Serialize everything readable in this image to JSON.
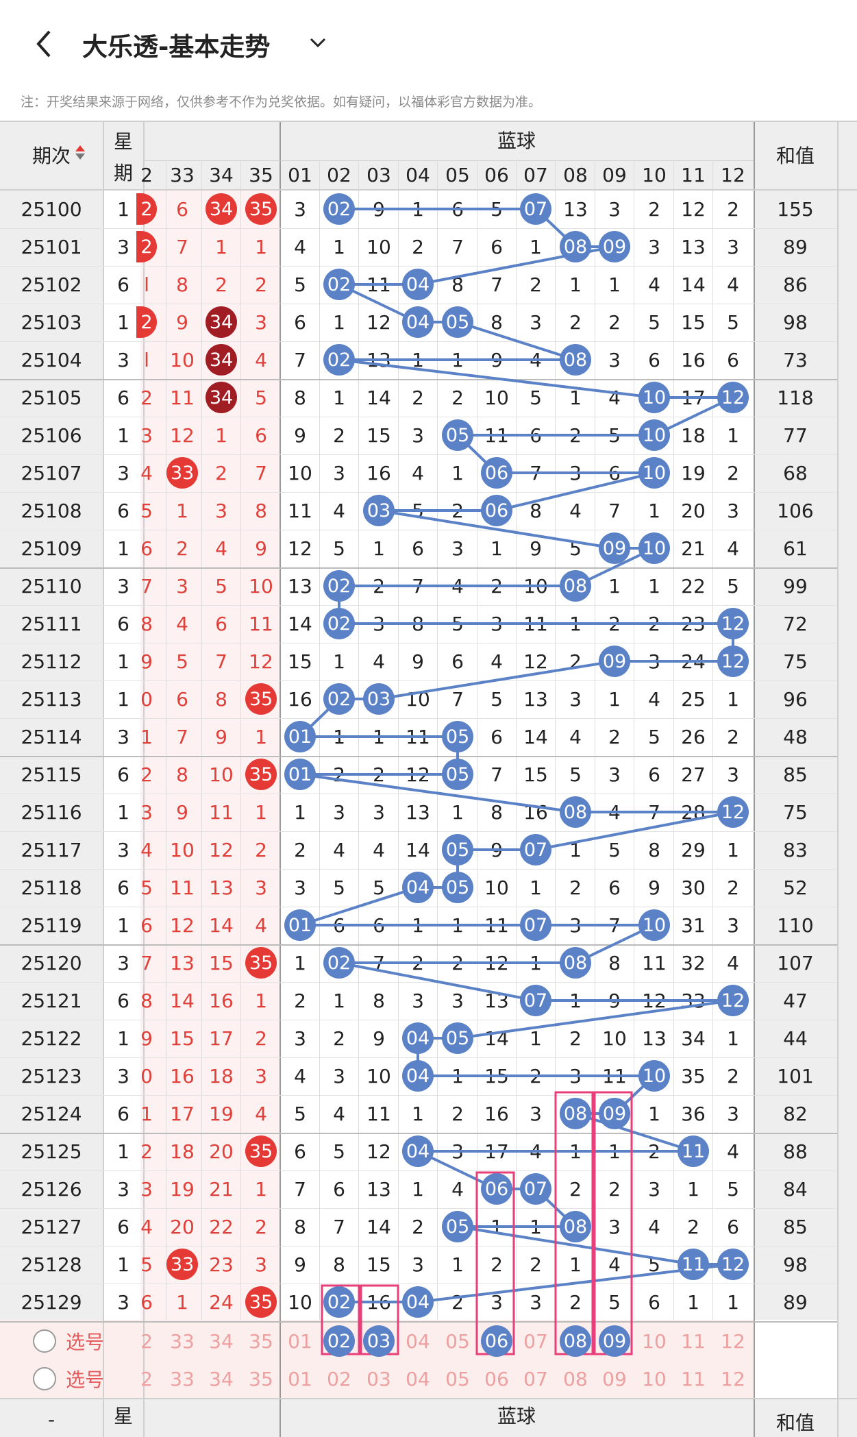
{
  "header": {
    "title": "大乐透-基本走势"
  },
  "note": "注：开奖结果来源于网络，仅供参考不作为兑奖依据。如有疑问，以福体彩官方数据为准。",
  "table_header": {
    "period": "期次",
    "weekday_top": "星",
    "weekday_bottom": "期",
    "blue_title": "蓝球",
    "sum": "和值"
  },
  "front_cols": [
    "2",
    "33",
    "34",
    "35"
  ],
  "blue_cols": [
    "01",
    "02",
    "03",
    "04",
    "05",
    "06",
    "07",
    "08",
    "09",
    "10",
    "11",
    "12"
  ],
  "rows": [
    {
      "period": "25100",
      "wk": "1",
      "front": [
        "2",
        "6",
        "34",
        "35"
      ],
      "blue": [
        "3",
        "02",
        "9",
        "1",
        "6",
        "5",
        "07",
        "13",
        "3",
        "2",
        "12",
        "2"
      ],
      "sum": "155"
    },
    {
      "period": "25101",
      "wk": "3",
      "front": [
        "2",
        "7",
        "1",
        "1"
      ],
      "blue": [
        "4",
        "1",
        "10",
        "2",
        "7",
        "6",
        "1",
        "08",
        "09",
        "3",
        "13",
        "3"
      ],
      "sum": "89"
    },
    {
      "period": "25102",
      "wk": "6",
      "front": "l 8 2 2",
      "blue": [
        "5",
        "02",
        "11",
        "04",
        "8",
        "7",
        "2",
        "1",
        "1",
        "4",
        "14",
        "4"
      ],
      "sum": "86"
    },
    {
      "period": "25103",
      "wk": "1",
      "front": [
        "2",
        "9",
        "34",
        "3"
      ],
      "blue": [
        "6",
        "1",
        "12",
        "04",
        "05",
        "8",
        "3",
        "2",
        "2",
        "5",
        "15",
        "5"
      ],
      "sum": "98"
    },
    {
      "period": "25104",
      "wk": "3",
      "front": [
        "l",
        "10",
        "34",
        "4"
      ],
      "blue": [
        "7",
        "02",
        "13",
        "1",
        "1",
        "9",
        "4",
        "08",
        "3",
        "6",
        "16",
        "6"
      ],
      "sum": "73"
    },
    {
      "period": "25105",
      "wk": "6",
      "front": [
        "2",
        "11",
        "34",
        "5"
      ],
      "blue": [
        "8",
        "1",
        "14",
        "2",
        "2",
        "10",
        "5",
        "1",
        "4",
        "10",
        "17",
        "12"
      ],
      "sum": "118"
    },
    {
      "period": "25106",
      "wk": "1",
      "front": [
        "3",
        "12",
        "1",
        "6"
      ],
      "blue": [
        "9",
        "2",
        "15",
        "3",
        "05",
        "11",
        "6",
        "2",
        "5",
        "10",
        "18",
        "1"
      ],
      "sum": "77"
    },
    {
      "period": "25107",
      "wk": "3",
      "front": [
        "4",
        "33",
        "2",
        "7"
      ],
      "blue": [
        "10",
        "3",
        "16",
        "4",
        "1",
        "06",
        "7",
        "3",
        "6",
        "10",
        "19",
        "2"
      ],
      "sum": "68"
    },
    {
      "period": "25108",
      "wk": "6",
      "front": [
        "5",
        "1",
        "3",
        "8"
      ],
      "blue": [
        "11",
        "4",
        "03",
        "5",
        "2",
        "06",
        "8",
        "4",
        "7",
        "1",
        "20",
        "3"
      ],
      "sum": "106"
    },
    {
      "period": "25109",
      "wk": "1",
      "front": [
        "6",
        "2",
        "4",
        "9"
      ],
      "blue": [
        "12",
        "5",
        "1",
        "6",
        "3",
        "1",
        "9",
        "5",
        "09",
        "10",
        "21",
        "4"
      ],
      "sum": "61"
    },
    {
      "period": "25110",
      "wk": "3",
      "front": [
        "7",
        "3",
        "5",
        "10"
      ],
      "blue": [
        "13",
        "02",
        "2",
        "7",
        "4",
        "2",
        "10",
        "08",
        "1",
        "1",
        "22",
        "5"
      ],
      "sum": "99"
    },
    {
      "period": "25111",
      "wk": "6",
      "front": [
        "8",
        "4",
        "6",
        "11"
      ],
      "blue": [
        "14",
        "02",
        "3",
        "8",
        "5",
        "3",
        "11",
        "1",
        "2",
        "2",
        "23",
        "12"
      ],
      "sum": "72"
    },
    {
      "period": "25112",
      "wk": "1",
      "front": [
        "9",
        "5",
        "7",
        "12"
      ],
      "blue": [
        "15",
        "1",
        "4",
        "9",
        "6",
        "4",
        "12",
        "2",
        "09",
        "3",
        "24",
        "12"
      ],
      "sum": "75"
    },
    {
      "period": "25113",
      "wk": "1",
      "front": [
        "0",
        "6",
        "8",
        "35"
      ],
      "blue": [
        "16",
        "02",
        "03",
        "10",
        "7",
        "5",
        "13",
        "3",
        "1",
        "4",
        "25",
        "1"
      ],
      "sum": "96"
    },
    {
      "period": "25114",
      "wk": "3",
      "front": [
        "1",
        "7",
        "9",
        "1"
      ],
      "blue": [
        "01",
        "1",
        "1",
        "11",
        "05",
        "6",
        "14",
        "4",
        "2",
        "5",
        "26",
        "2"
      ],
      "sum": "48"
    },
    {
      "period": "25115",
      "wk": "6",
      "front": [
        "2",
        "8",
        "10",
        "35"
      ],
      "blue": [
        "01",
        "2",
        "2",
        "12",
        "05",
        "7",
        "15",
        "5",
        "3",
        "6",
        "27",
        "3"
      ],
      "sum": "85"
    },
    {
      "period": "25116",
      "wk": "1",
      "front": [
        "3",
        "9",
        "11",
        "1"
      ],
      "blue": [
        "1",
        "3",
        "3",
        "13",
        "1",
        "8",
        "16",
        "08",
        "4",
        "7",
        "28",
        "12"
      ],
      "sum": "75"
    },
    {
      "period": "25117",
      "wk": "3",
      "front": [
        "4",
        "10",
        "12",
        "2"
      ],
      "blue": [
        "2",
        "4",
        "4",
        "14",
        "05",
        "9",
        "07",
        "1",
        "5",
        "8",
        "29",
        "1"
      ],
      "sum": "83"
    },
    {
      "period": "25118",
      "wk": "6",
      "front": [
        "5",
        "11",
        "13",
        "3"
      ],
      "blue": [
        "3",
        "5",
        "5",
        "04",
        "05",
        "10",
        "1",
        "2",
        "6",
        "9",
        "30",
        "2"
      ],
      "sum": "52"
    },
    {
      "period": "25119",
      "wk": "1",
      "front": [
        "6",
        "12",
        "14",
        "4"
      ],
      "blue": [
        "01",
        "6",
        "6",
        "1",
        "1",
        "11",
        "07",
        "3",
        "7",
        "10",
        "31",
        "3"
      ],
      "sum": "110"
    },
    {
      "period": "25120",
      "wk": "3",
      "front": [
        "7",
        "13",
        "15",
        "35"
      ],
      "blue": [
        "1",
        "02",
        "7",
        "2",
        "2",
        "12",
        "1",
        "08",
        "8",
        "11",
        "32",
        "4"
      ],
      "sum": "107"
    },
    {
      "period": "25121",
      "wk": "6",
      "front": [
        "8",
        "14",
        "16",
        "1"
      ],
      "blue": [
        "2",
        "1",
        "8",
        "3",
        "3",
        "13",
        "07",
        "1",
        "9",
        "12",
        "33",
        "12"
      ],
      "sum": "47"
    },
    {
      "period": "25122",
      "wk": "1",
      "front": [
        "9",
        "15",
        "17",
        "2"
      ],
      "blue": [
        "3",
        "2",
        "9",
        "04",
        "05",
        "14",
        "1",
        "2",
        "10",
        "13",
        "34",
        "1"
      ],
      "sum": "44"
    },
    {
      "period": "25123",
      "wk": "3",
      "front": [
        "0",
        "16",
        "18",
        "3"
      ],
      "blue": [
        "4",
        "3",
        "10",
        "04",
        "1",
        "15",
        "2",
        "3",
        "11",
        "10",
        "35",
        "2"
      ],
      "sum": "101"
    },
    {
      "period": "25124",
      "wk": "6",
      "front": [
        "1",
        "17",
        "19",
        "4"
      ],
      "blue": [
        "5",
        "4",
        "11",
        "1",
        "2",
        "16",
        "3",
        "08",
        "09",
        "1",
        "36",
        "3"
      ],
      "sum": "82"
    },
    {
      "period": "25125",
      "wk": "1",
      "front": [
        "2",
        "18",
        "20",
        "35"
      ],
      "blue": [
        "6",
        "5",
        "12",
        "04",
        "3",
        "17",
        "4",
        "1",
        "1",
        "2",
        "11",
        "4"
      ],
      "sum": "88"
    },
    {
      "period": "25126",
      "wk": "3",
      "front": [
        "3",
        "19",
        "21",
        "1"
      ],
      "blue": [
        "7",
        "6",
        "13",
        "1",
        "4",
        "06",
        "07",
        "2",
        "2",
        "3",
        "1",
        "5"
      ],
      "sum": "84"
    },
    {
      "period": "25127",
      "wk": "6",
      "front": [
        "4",
        "20",
        "22",
        "2"
      ],
      "blue": [
        "8",
        "7",
        "14",
        "2",
        "05",
        "1",
        "1",
        "08",
        "3",
        "4",
        "2",
        "6"
      ],
      "sum": "85"
    },
    {
      "period": "25128",
      "wk": "1",
      "front": [
        "5",
        "33",
        "23",
        "3"
      ],
      "blue": [
        "9",
        "8",
        "15",
        "3",
        "1",
        "2",
        "2",
        "1",
        "4",
        "5",
        "11",
        "12"
      ],
      "sum": "98"
    },
    {
      "period": "25129",
      "wk": "3",
      "front": [
        "6",
        "1",
        "24",
        "35"
      ],
      "blue": [
        "10",
        "02",
        "16",
        "04",
        "2",
        "3",
        "3",
        "2",
        "5",
        "6",
        "1",
        "1"
      ],
      "sum": "89"
    }
  ],
  "select_rows": [
    {
      "label": "选号"
    },
    {
      "label": "选号"
    }
  ],
  "colors": {
    "red": "#e53935",
    "dark_red": "#a11d24",
    "blue": "#5b82c7",
    "pink": "#e83e7a"
  }
}
